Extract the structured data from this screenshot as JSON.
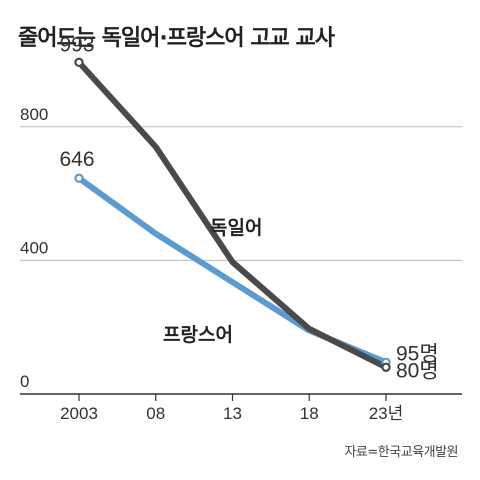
{
  "chart_data": {
    "type": "line",
    "title": "줄어드는 독일어·프랑스어 고교 교사",
    "x": [
      2003,
      2008,
      2013,
      2018,
      2023
    ],
    "x_tick_labels": [
      "2003",
      "08",
      "13",
      "18",
      "23년"
    ],
    "y_ticks": [
      0,
      400,
      800
    ],
    "y_tick_labels": [
      "0",
      "400",
      "800"
    ],
    "ylim": [
      0,
      1000
    ],
    "grid": "horizontal",
    "series": [
      {
        "name": "독일어",
        "color": "#4a4a4a",
        "values": [
          993,
          740,
          395,
          195,
          80
        ],
        "data_labels": {
          "first": "993",
          "last": "80명"
        }
      },
      {
        "name": "프랑스어",
        "color": "#5b9bd0",
        "values": [
          646,
          480,
          335,
          190,
          95
        ],
        "data_labels": {
          "first": "646",
          "last": "95명"
        }
      }
    ],
    "source": "자료=한국교육개발원"
  }
}
